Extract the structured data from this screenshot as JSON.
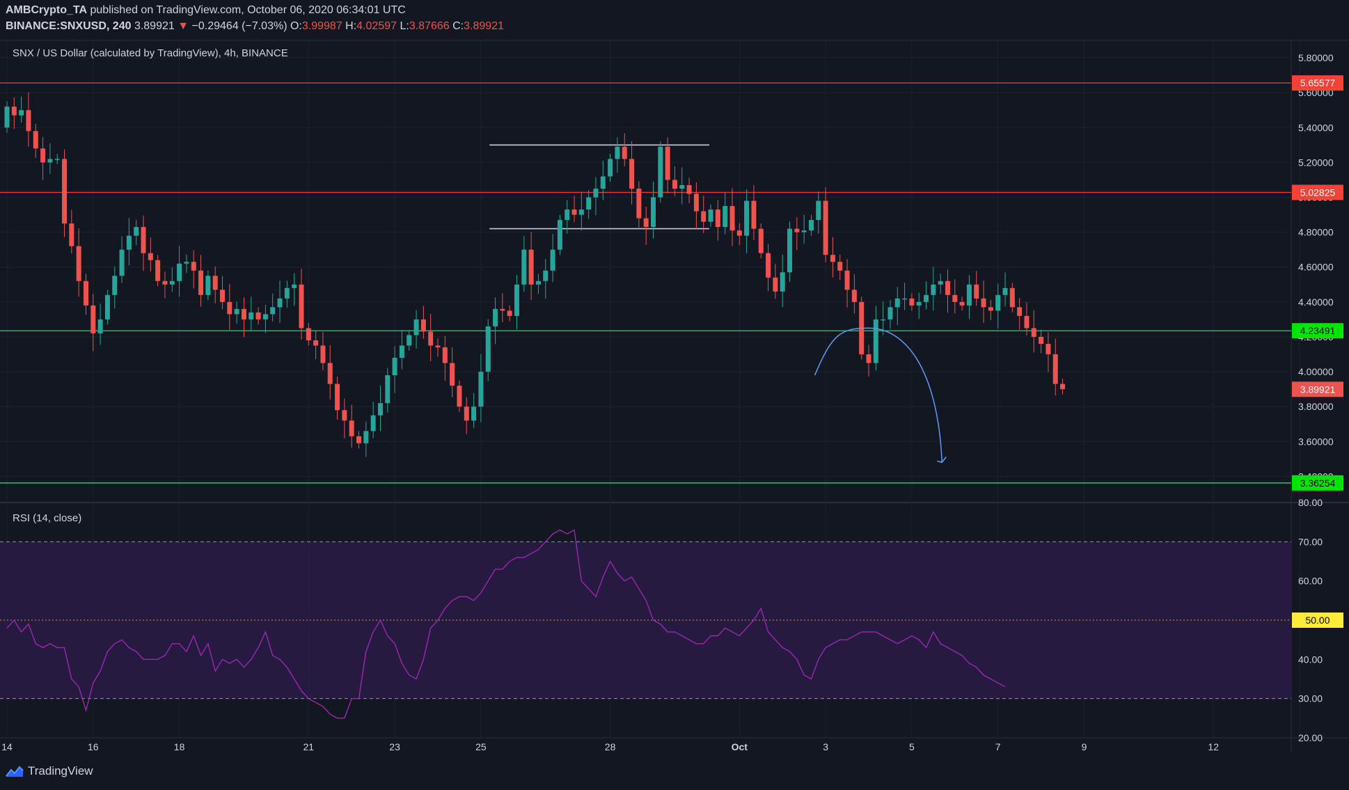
{
  "header": {
    "line1_user": "AMBCrypto_TA",
    "line1_text": "published on TradingView.com, October 06, 2020 06:34:01 UTC",
    "symbol": "BINANCE:SNXUSD, 240",
    "last": "3.89921",
    "change_arrow": "▼",
    "change": "−0.29464 (−7.03%)",
    "o_label": "O:",
    "o_value": "3.99987",
    "h_label": "H:",
    "h_value": "4.02597",
    "l_label": "L:",
    "l_value": "3.87666",
    "c_label": "C:",
    "c_value": "3.89921"
  },
  "brand": "TradingView",
  "colors": {
    "background": "#131722",
    "up": "#26a69a",
    "down": "#ef5350",
    "resistance": "#e53935",
    "support": "#00e676",
    "rsi": "#9c27b0",
    "rsi_band": "#2a1b45",
    "curve": "#5b9cf6",
    "box": "#c9ccd6"
  },
  "chart_data": [
    {
      "type": "candlestick",
      "title": "SNX / US Dollar (calculated by TradingView), 4h, BINANCE",
      "ylim": [
        3.25,
        5.9
      ],
      "y_ticks": [
        "5.80000",
        "5.60000",
        "5.40000",
        "5.20000",
        "5.00000",
        "4.80000",
        "4.60000",
        "4.40000",
        "4.20000",
        "4.00000",
        "3.80000",
        "3.60000",
        "3.40000"
      ],
      "x_ticks": [
        {
          "label": "14",
          "day": 0
        },
        {
          "label": "16",
          "day": 2
        },
        {
          "label": "18",
          "day": 4
        },
        {
          "label": "21",
          "day": 7
        },
        {
          "label": "23",
          "day": 9
        },
        {
          "label": "25",
          "day": 11
        },
        {
          "label": "28",
          "day": 14
        },
        {
          "label": "Oct",
          "day": 17
        },
        {
          "label": "3",
          "day": 19
        },
        {
          "label": "5",
          "day": 21
        },
        {
          "label": "7",
          "day": 23
        },
        {
          "label": "9",
          "day": 25
        },
        {
          "label": "12",
          "day": 28
        },
        {
          "label": "14",
          "day": 30
        }
      ],
      "horizontal_levels": [
        {
          "value": 5.65577,
          "label": "5.65577",
          "kind": "resistance"
        },
        {
          "value": 5.02825,
          "label": "5.02825",
          "kind": "resistance"
        },
        {
          "value": 4.23491,
          "label": "4.23491",
          "kind": "support"
        },
        {
          "value": 3.36254,
          "label": "3.36254",
          "kind": "support"
        }
      ],
      "last_price_label": "3.89921",
      "annotations": [
        {
          "type": "range",
          "top": 5.3,
          "bottom": 4.82,
          "from_day": 11.2,
          "to_day": 16.3
        },
        {
          "type": "arc_arrow",
          "from": [
            18.75,
            3.98
          ],
          "peak": [
            20.0,
            4.25
          ],
          "to": [
            21.7,
            3.48
          ]
        }
      ],
      "close_series": [
        5.52,
        5.47,
        5.5,
        5.38,
        5.28,
        5.2,
        5.22,
        5.22,
        4.85,
        4.72,
        4.52,
        4.38,
        4.22,
        4.3,
        4.44,
        4.55,
        4.7,
        4.78,
        4.83,
        4.68,
        4.64,
        4.52,
        4.5,
        4.52,
        4.62,
        4.63,
        4.58,
        4.44,
        4.55,
        4.47,
        4.4,
        4.33,
        4.36,
        4.3,
        4.34,
        4.3,
        4.33,
        4.37,
        4.42,
        4.48,
        4.5,
        4.25,
        4.18,
        4.15,
        4.05,
        3.93,
        3.78,
        3.72,
        3.63,
        3.59,
        3.66,
        3.75,
        3.82,
        3.98,
        4.08,
        4.15,
        4.21,
        4.3,
        4.23,
        4.15,
        4.14,
        4.05,
        3.92,
        3.8,
        3.72,
        3.8,
        4.0,
        4.26,
        4.36,
        4.35,
        4.32,
        4.5,
        4.7,
        4.5,
        4.52,
        4.58,
        4.7,
        4.87,
        4.93,
        4.9,
        4.93,
        5.0,
        5.05,
        5.12,
        5.22,
        5.29,
        5.22,
        5.05,
        4.88,
        4.83,
        5.0,
        5.29,
        5.1,
        5.05,
        5.07,
        5.02,
        4.92,
        4.86,
        4.93,
        4.83,
        4.95,
        4.81,
        4.78,
        4.98,
        4.82,
        4.68,
        4.54,
        4.46,
        4.57,
        4.82,
        4.8,
        4.81,
        4.87,
        4.98,
        4.67,
        4.63,
        4.58,
        4.47,
        4.4,
        4.1,
        4.05,
        4.3,
        4.3,
        4.37,
        4.42,
        4.42,
        4.38,
        4.4,
        4.44,
        4.5,
        4.52,
        4.44,
        4.4,
        4.38,
        4.5,
        4.42,
        4.37,
        4.35,
        4.44,
        4.48,
        4.37,
        4.32,
        4.25,
        4.2,
        4.16,
        4.1,
        3.93,
        3.9
      ],
      "rsi": {
        "title": "RSI (14, close)",
        "ylim": [
          20,
          80
        ],
        "y_ticks": [
          "80.00",
          "70.00",
          "60.00",
          "50.00",
          "40.00",
          "30.00",
          "20.00"
        ],
        "upper_band": 70,
        "lower_band": 30,
        "mid_line": 50,
        "mid_label": "50.00",
        "values": [
          48,
          50,
          47,
          49,
          44,
          43,
          44,
          43,
          43,
          35,
          33,
          27,
          34,
          37,
          42,
          44,
          45,
          43,
          42,
          40,
          40,
          40,
          41,
          44,
          44,
          42,
          46,
          41,
          44,
          37,
          40,
          39,
          40,
          38,
          40,
          43,
          47,
          41,
          40,
          38,
          35,
          32,
          30,
          29,
          28,
          26,
          25,
          25,
          30,
          30,
          42,
          47,
          50,
          46,
          44,
          39,
          36,
          35,
          40,
          48,
          50,
          53,
          55,
          56,
          56,
          55,
          57,
          60,
          63,
          63,
          65,
          66,
          66,
          67,
          68,
          70,
          72,
          73,
          72,
          73,
          60,
          58,
          56,
          61,
          65,
          62,
          60,
          61,
          58,
          55,
          50,
          49,
          47,
          47,
          46,
          45,
          44,
          44,
          46,
          46,
          48,
          47,
          46,
          48,
          50,
          53,
          47,
          45,
          43,
          42,
          40,
          36,
          35,
          40,
          43,
          44,
          45,
          45,
          46,
          47,
          47,
          47,
          46,
          45,
          44,
          45,
          46,
          45,
          43,
          47,
          44,
          43,
          42,
          41,
          39,
          38,
          36,
          35,
          34,
          33
        ]
      }
    }
  ]
}
